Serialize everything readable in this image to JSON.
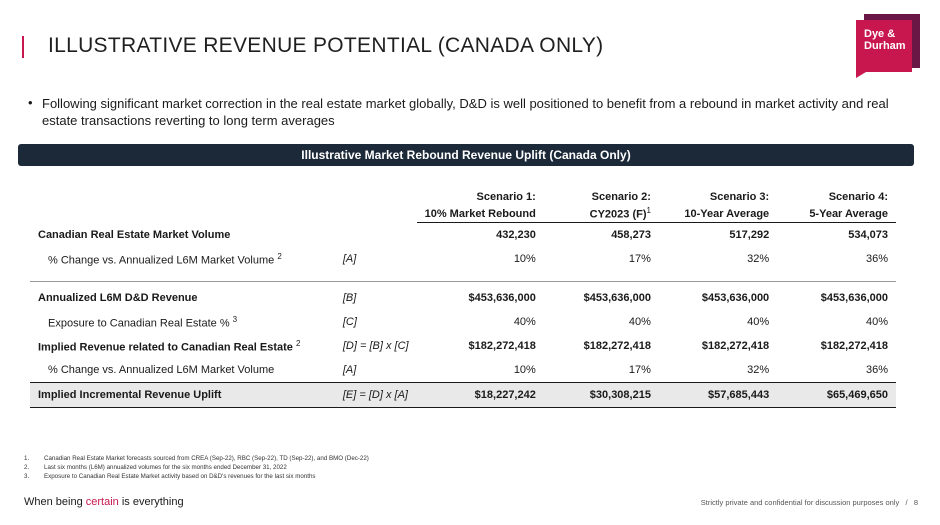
{
  "title": "ILLUSTRATIVE REVENUE POTENTIAL (CANADA ONLY)",
  "logo": {
    "line1": "Dye &",
    "line2": "Durham"
  },
  "bullet": "Following significant market correction in the real estate market globally, D&D is well positioned to benefit from a rebound in market activity and real estate transactions reverting to long term averages",
  "banner": "Illustrative Market Rebound Revenue Uplift (Canada Only)",
  "table": {
    "headers": [
      {
        "line1": "Scenario 1:",
        "line2": "10% Market Rebound",
        "sup": ""
      },
      {
        "line1": "Scenario 2:",
        "line2": "CY2023 (F)",
        "sup": "1"
      },
      {
        "line1": "Scenario 3:",
        "line2": "10-Year Average",
        "sup": ""
      },
      {
        "line1": "Scenario 4:",
        "line2": "5-Year Average",
        "sup": ""
      }
    ],
    "rows": [
      {
        "label": "Canadian Real Estate Market Volume",
        "sup": "",
        "ref": "",
        "values": [
          "432,230",
          "458,273",
          "517,292",
          "534,073"
        ]
      },
      {
        "label": "% Change vs. Annualized L6M Market Volume",
        "sup": "2",
        "ref": "[A]",
        "values": [
          "10%",
          "17%",
          "32%",
          "36%"
        ]
      },
      {
        "label": "Annualized L6M D&D Revenue",
        "sup": "",
        "ref": "[B]",
        "values": [
          "$453,636,000",
          "$453,636,000",
          "$453,636,000",
          "$453,636,000"
        ]
      },
      {
        "label": "Exposure to Canadian Real Estate %",
        "sup": "3",
        "ref": "[C]",
        "values": [
          "40%",
          "40%",
          "40%",
          "40%"
        ]
      },
      {
        "label": "Implied Revenue related to Canadian Real Estate",
        "sup": "2",
        "ref": "[D] = [B] x [C]",
        "values": [
          "$182,272,418",
          "$182,272,418",
          "$182,272,418",
          "$182,272,418"
        ]
      },
      {
        "label": "% Change vs. Annualized L6M Market Volume",
        "sup": "",
        "ref": "[A]",
        "values": [
          "10%",
          "17%",
          "32%",
          "36%"
        ]
      },
      {
        "label": "Implied Incremental Revenue Uplift",
        "sup": "",
        "ref": "[E] = [D] x [A]",
        "values": [
          "$18,227,242",
          "$30,308,215",
          "$57,685,443",
          "$65,469,650"
        ]
      }
    ]
  },
  "footnotes": [
    {
      "num": "1.",
      "text": "Canadian Real Estate Market forecasts sourced from CREA (Sep-22), RBC (Sep-22), TD (Sep-22), and BMO (Dec-22)"
    },
    {
      "num": "2.",
      "text": "Last six months (L6M) annualized volumes for the six months ended December 31, 2022"
    },
    {
      "num": "3.",
      "text": "Exposure to Canadian Real Estate Market activity based on D&D's revenues for the last six months"
    }
  ],
  "tagline": {
    "pre": "When being ",
    "highlight": "certain",
    "post": " is everything"
  },
  "confidential": "Strictly private and confidential for discussion purposes only",
  "separator": "/",
  "page_number": "8",
  "colors": {
    "accent": "#c8174f",
    "banner": "#1c2938",
    "logo_dark": "#6b1745"
  }
}
